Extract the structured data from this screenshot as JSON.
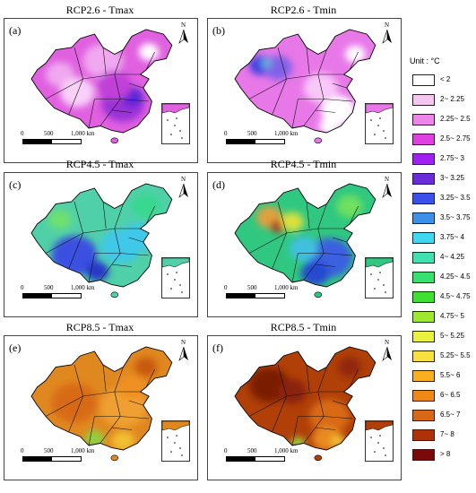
{
  "panels": [
    {
      "label": "(a)",
      "title": "RCP2.6 - Tmax",
      "base": "#e060e0",
      "blobs": [
        [
          "#f0a8f0",
          0.5,
          0.28,
          0.14
        ],
        [
          "#f0a8f0",
          0.2,
          0.4,
          0.1
        ],
        [
          "#9a30d8",
          0.64,
          0.66,
          0.15
        ],
        [
          "#5a28d8",
          0.7,
          0.6,
          0.08
        ],
        [
          "#c040d8",
          0.58,
          0.5,
          0.12
        ],
        [
          "#ffffff",
          0.82,
          0.2,
          0.07
        ],
        [
          "#f8d0f8",
          0.32,
          0.56,
          0.12
        ]
      ]
    },
    {
      "label": "(b)",
      "title": "RCP2.6 - Tmin",
      "base": "#e878e8",
      "blobs": [
        [
          "#4040e0",
          0.18,
          0.32,
          0.08
        ],
        [
          "#8060e8",
          0.3,
          0.34,
          0.1
        ],
        [
          "#60b0d8",
          0.22,
          0.3,
          0.04
        ],
        [
          "#ffffff",
          0.72,
          0.72,
          0.12
        ],
        [
          "#ffffff",
          0.84,
          0.22,
          0.07
        ],
        [
          "#f8c8f8",
          0.6,
          0.52,
          0.12
        ],
        [
          "#ffffff",
          0.66,
          0.86,
          0.07
        ]
      ]
    },
    {
      "label": "(c)",
      "title": "RCP4.5 - Tmax",
      "base": "#50d0a8",
      "blobs": [
        [
          "#3a50e0",
          0.3,
          0.64,
          0.16
        ],
        [
          "#2838c8",
          0.46,
          0.78,
          0.08
        ],
        [
          "#40c8e8",
          0.62,
          0.56,
          0.14
        ],
        [
          "#40c8e8",
          0.74,
          0.48,
          0.12
        ],
        [
          "#38d890",
          0.8,
          0.2,
          0.1
        ],
        [
          "#70e070",
          0.2,
          0.32,
          0.08
        ]
      ]
    },
    {
      "label": "(d)",
      "title": "RCP4.5 - Tmin",
      "base": "#30c880",
      "blobs": [
        [
          "#e0a040",
          0.24,
          0.3,
          0.09
        ],
        [
          "#b03020",
          0.3,
          0.38,
          0.05
        ],
        [
          "#d8e040",
          0.4,
          0.34,
          0.08
        ],
        [
          "#3a60e0",
          0.66,
          0.66,
          0.16
        ],
        [
          "#2848d0",
          0.56,
          0.8,
          0.1
        ],
        [
          "#40c0e0",
          0.48,
          0.58,
          0.1
        ],
        [
          "#70e060",
          0.8,
          0.2,
          0.09
        ]
      ]
    },
    {
      "label": "(e)",
      "title": "RCP8.5 - Tmax",
      "base": "#e08820",
      "blobs": [
        [
          "#d86a18",
          0.3,
          0.5,
          0.16
        ],
        [
          "#f0a030",
          0.64,
          0.54,
          0.16
        ],
        [
          "#90d040",
          0.44,
          0.82,
          0.07
        ],
        [
          "#f0c030",
          0.64,
          0.84,
          0.08
        ],
        [
          "#c85a10",
          0.8,
          0.18,
          0.08
        ],
        [
          "#f09020",
          0.7,
          0.36,
          0.1
        ]
      ]
    },
    {
      "label": "(f)",
      "title": "RCP8.5 - Tmin",
      "base": "#b04008",
      "blobs": [
        [
          "#7a1a05",
          0.24,
          0.34,
          0.14
        ],
        [
          "#8a2008",
          0.4,
          0.4,
          0.1
        ],
        [
          "#d86a18",
          0.66,
          0.62,
          0.14
        ],
        [
          "#e88a20",
          0.64,
          0.82,
          0.1
        ],
        [
          "#a0d040",
          0.44,
          0.86,
          0.05
        ],
        [
          "#f0c030",
          0.72,
          0.84,
          0.05
        ],
        [
          "#902808",
          0.8,
          0.18,
          0.08
        ]
      ]
    }
  ],
  "scale": {
    "t0": "0",
    "t1": "500",
    "t2": "1,000 km"
  },
  "north_label": "N",
  "legend": {
    "title": "Unit : °C",
    "items": [
      {
        "label": "< 2",
        "color": "#ffffff"
      },
      {
        "label": "2~ 2.25",
        "color": "#f6c6f2"
      },
      {
        "label": "2.25~ 2.5",
        "color": "#ee86ea"
      },
      {
        "label": "2.5~ 2.75",
        "color": "#e040e0"
      },
      {
        "label": "2.75~ 3",
        "color": "#a020f0"
      },
      {
        "label": "3~ 3.25",
        "color": "#6a2cd8"
      },
      {
        "label": "3.25~ 3.5",
        "color": "#3a50e8"
      },
      {
        "label": "3.5~ 3.75",
        "color": "#3c90e8"
      },
      {
        "label": "3.75~ 4",
        "color": "#40d8f0"
      },
      {
        "label": "4~ 4.25",
        "color": "#40e0b0"
      },
      {
        "label": "4.25~ 4.5",
        "color": "#38e070"
      },
      {
        "label": "4.5~ 4.75",
        "color": "#40e030"
      },
      {
        "label": "4.75~ 5",
        "color": "#a0e830"
      },
      {
        "label": "5~ 5.25",
        "color": "#e8f040"
      },
      {
        "label": "5.25~ 5.5",
        "color": "#f8e040"
      },
      {
        "label": "5.5~ 6",
        "color": "#f8b020"
      },
      {
        "label": "6~ 6.5",
        "color": "#f08818"
      },
      {
        "label": "6.5~ 7",
        "color": "#d86818"
      },
      {
        "label": "7~ 8",
        "color": "#b03008"
      },
      {
        "label": "> 8",
        "color": "#7a0a0a"
      }
    ]
  }
}
